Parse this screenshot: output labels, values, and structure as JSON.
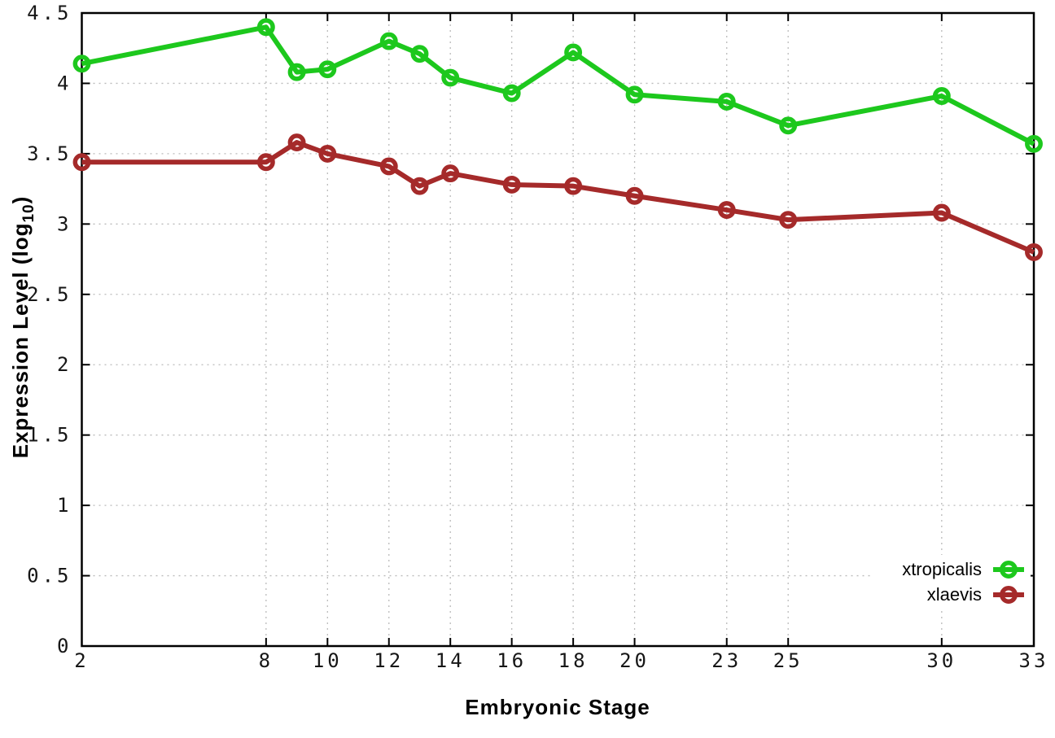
{
  "chart_data": {
    "type": "line",
    "title": "",
    "xlabel": "Embryonic Stage",
    "ylabel": "Expression Level (log10)",
    "ylabel_parts": {
      "main": "Expression Level (log",
      "sub": "10",
      "close": ")"
    },
    "xlim": [
      2,
      33
    ],
    "ylim": [
      0,
      4.5
    ],
    "grid": true,
    "grid_style": "dotted",
    "grid_color": "#bbbbbb",
    "background_color": "#ffffff",
    "border_color": "#000000",
    "xticks": [
      2,
      8,
      10,
      12,
      14,
      16,
      18,
      20,
      23,
      25,
      30,
      33
    ],
    "xtick_labels": [
      "2",
      "8",
      "10",
      "12",
      "14",
      "16",
      "18",
      "20",
      "23",
      "25",
      "30",
      "33"
    ],
    "yticks": [
      0,
      0.5,
      1,
      1.5,
      2,
      2.5,
      3,
      3.5,
      4,
      4.5
    ],
    "ytick_labels": [
      "0",
      "0.5",
      "1",
      "1.5",
      "2",
      "2.5",
      "3",
      "3.5",
      "4",
      "4.5"
    ],
    "x": [
      2,
      8,
      9,
      10,
      12,
      13,
      14,
      16,
      18,
      20,
      23,
      25,
      30,
      33
    ],
    "series": [
      {
        "name": "xtropicalis",
        "color": "#1dc81d",
        "marker": "open-circle",
        "values": [
          4.14,
          4.4,
          4.08,
          4.1,
          4.3,
          4.21,
          4.04,
          3.93,
          4.22,
          3.92,
          3.87,
          3.7,
          3.91,
          3.57
        ]
      },
      {
        "name": "xlaevis",
        "color": "#a52a2a",
        "marker": "open-circle",
        "values": [
          3.44,
          3.44,
          3.58,
          3.5,
          3.41,
          3.27,
          3.36,
          3.28,
          3.27,
          3.2,
          3.1,
          3.03,
          3.08,
          2.8
        ]
      }
    ],
    "legend_position": "bottom-right-inside",
    "legend_opaque": true
  }
}
